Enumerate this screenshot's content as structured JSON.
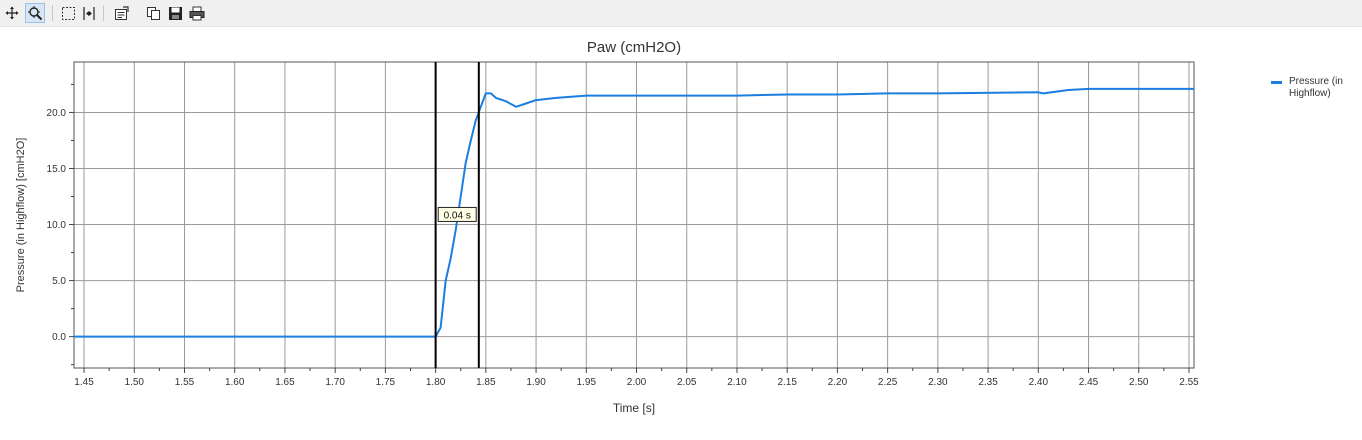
{
  "toolbar": {
    "buttons": [
      {
        "name": "pan-button",
        "icon": "move-arrows-icon"
      },
      {
        "name": "zoom-button",
        "icon": "zoom-magnifier-icon",
        "active": true
      },
      {
        "name": "select-box-button",
        "icon": "dashed-rectangle-icon"
      },
      {
        "name": "measure-cursor-button",
        "icon": "cursor-bracket-icon"
      },
      {
        "name": "properties-button",
        "icon": "properties-icon"
      },
      {
        "name": "copy-button",
        "icon": "copy-icon"
      },
      {
        "name": "save-button",
        "icon": "floppy-disk-icon"
      },
      {
        "name": "print-button",
        "icon": "printer-icon"
      }
    ]
  },
  "colors": {
    "series": "#1a7fe0",
    "grid": "#9a9a9a",
    "cursor": "#000000",
    "toolbar_bg": "#f0f0f0"
  },
  "chart_data": {
    "type": "line",
    "title": "Paw (cmH2O)",
    "xlabel": "Time [s]",
    "ylabel": "Pressure (in Highflow) [cmH2O]",
    "xlim": [
      1.44,
      2.555
    ],
    "ylim": [
      -2.8,
      24.5
    ],
    "xticks": [
      "1.45",
      "1.50",
      "1.55",
      "1.60",
      "1.65",
      "1.70",
      "1.75",
      "1.80",
      "1.85",
      "1.90",
      "1.95",
      "2.00",
      "2.05",
      "2.10",
      "2.15",
      "2.20",
      "2.25",
      "2.30",
      "2.35",
      "2.40",
      "2.45",
      "2.50",
      "2.55"
    ],
    "yticks": [
      "0.0",
      "5.0",
      "10.0",
      "15.0",
      "20.0"
    ],
    "grid": true,
    "legend": {
      "position": "top-right",
      "entries": [
        "Pressure (in Highflow)"
      ]
    },
    "series": [
      {
        "name": "Pressure (in Highflow)",
        "x": [
          1.44,
          1.8,
          1.805,
          1.81,
          1.815,
          1.82,
          1.83,
          1.835,
          1.84,
          1.845,
          1.85,
          1.855,
          1.86,
          1.87,
          1.88,
          1.89,
          1.9,
          1.92,
          1.95,
          2.0,
          2.1,
          2.15,
          2.2,
          2.25,
          2.3,
          2.4,
          2.405,
          2.43,
          2.45,
          2.5,
          2.555
        ],
        "y": [
          0.0,
          0.0,
          0.8,
          5.0,
          7.0,
          9.5,
          15.5,
          17.5,
          19.3,
          20.5,
          21.7,
          21.7,
          21.3,
          21.0,
          20.5,
          20.8,
          21.1,
          21.3,
          21.5,
          21.5,
          21.5,
          21.6,
          21.6,
          21.7,
          21.7,
          21.8,
          21.7,
          22.0,
          22.1,
          22.1,
          22.1
        ]
      }
    ],
    "cursors": [
      1.8,
      1.843
    ],
    "annotation": {
      "text": "0.04 s",
      "y": 10.9
    }
  }
}
